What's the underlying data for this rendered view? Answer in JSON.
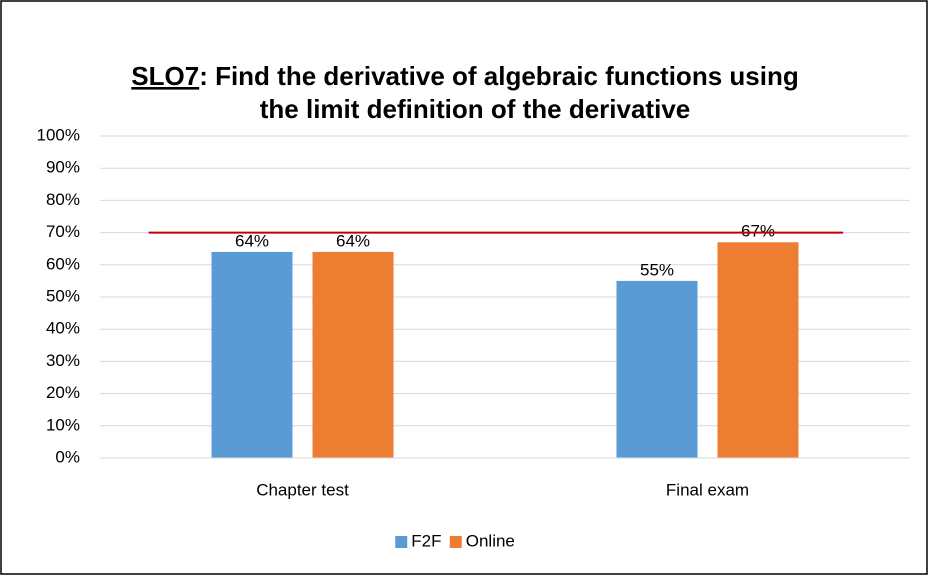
{
  "chart_data": {
    "type": "bar",
    "title": [
      "SLO7",
      ":  Find the derivative of algebraic functions using",
      "the limit definition of the derivative"
    ],
    "categories": [
      "Chapter test",
      "Final exam"
    ],
    "series": [
      {
        "name": "F2F",
        "color": "#5b9bd5",
        "values": [
          64,
          55
        ],
        "value_labels": [
          "64%",
          "55%"
        ]
      },
      {
        "name": "Online",
        "color": "#ed7d31",
        "values": [
          64,
          67
        ],
        "value_labels": [
          "64%",
          "67%"
        ]
      }
    ],
    "reference_line": {
      "value": 70,
      "color": "#c00000"
    },
    "ylim": [
      0,
      100
    ],
    "yticks": [
      {
        "value": 0,
        "label": "0%"
      },
      {
        "value": 10,
        "label": "10%"
      },
      {
        "value": 20,
        "label": "20%"
      },
      {
        "value": 30,
        "label": "30%"
      },
      {
        "value": 40,
        "label": "40%"
      },
      {
        "value": 50,
        "label": "50%"
      },
      {
        "value": 60,
        "label": "60%"
      },
      {
        "value": 70,
        "label": "70%"
      },
      {
        "value": 80,
        "label": "80%"
      },
      {
        "value": 90,
        "label": "90%"
      },
      {
        "value": 100,
        "label": "100%"
      }
    ],
    "grid": true,
    "legend": "bottom"
  }
}
